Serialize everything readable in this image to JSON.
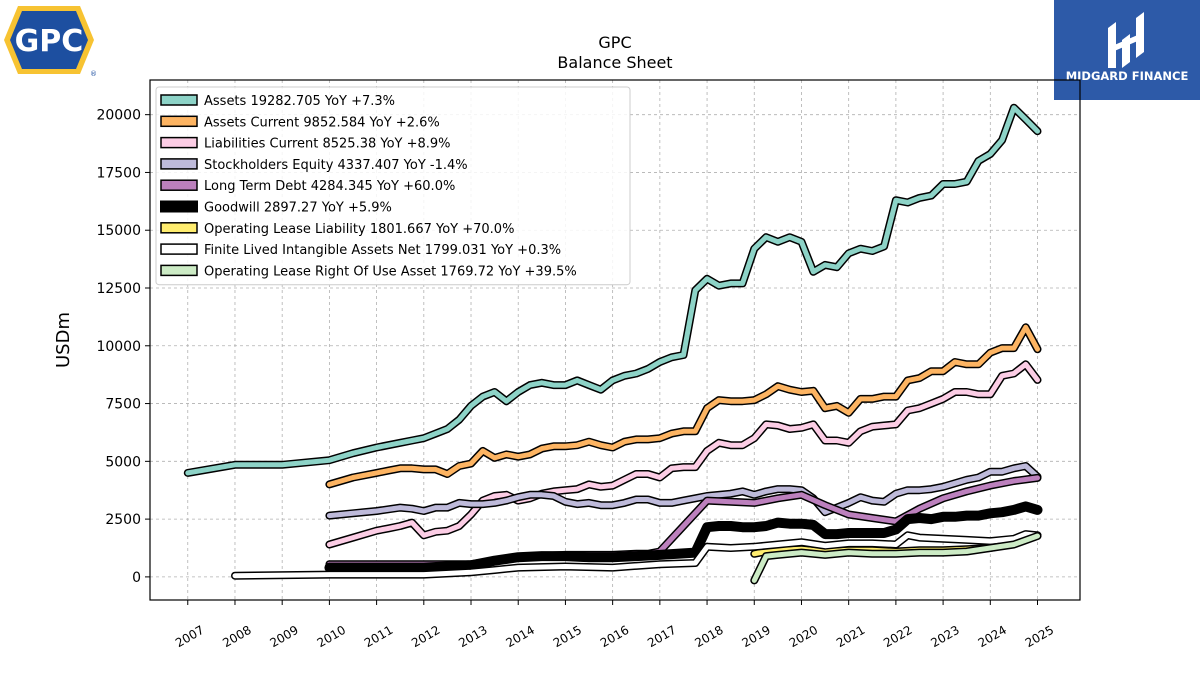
{
  "chart_data": {
    "type": "line",
    "title": "GPC",
    "subtitle": "Balance  Sheet",
    "ylabel": "USDm",
    "xlabel": "",
    "xlim": [
      2006.2,
      2025.9
    ],
    "ylim": [
      -1000,
      21500
    ],
    "yticks": [
      0,
      2500,
      5000,
      7500,
      10000,
      12500,
      15000,
      17500,
      20000
    ],
    "ytick_labels": [
      "0",
      "2500",
      "5000",
      "7500",
      "10000",
      "12500",
      "15000",
      "17500",
      "20000"
    ],
    "xticks": [
      2007,
      2008,
      2009,
      2010,
      2011,
      2012,
      2013,
      2014,
      2015,
      2016,
      2017,
      2018,
      2019,
      2020,
      2021,
      2022,
      2023,
      2024,
      2025
    ],
    "xtick_labels": [
      "2007",
      "2008",
      "2009",
      "2010",
      "2011",
      "2012",
      "2013",
      "2014",
      "2015",
      "2016",
      "2017",
      "2018",
      "2019",
      "2020",
      "2021",
      "2022",
      "2023",
      "2024",
      "2025"
    ],
    "grid": true,
    "legend_position": "top-left",
    "series": [
      {
        "name": "Assets",
        "legend": "Assets  19282.705 YoY +7.3%",
        "color": "#8dd3c7",
        "width": 5,
        "x": [
          2007,
          2008,
          2009,
          2010,
          2010.5,
          2011,
          2011.5,
          2011.75,
          2012,
          2012.25,
          2012.5,
          2012.75,
          2013,
          2013.25,
          2013.5,
          2013.75,
          2014,
          2014.25,
          2014.5,
          2014.75,
          2015,
          2015.25,
          2015.5,
          2015.75,
          2016,
          2016.25,
          2016.5,
          2016.75,
          2017,
          2017.25,
          2017.5,
          2017.75,
          2018,
          2018.25,
          2018.5,
          2018.75,
          2019,
          2019.25,
          2019.5,
          2019.75,
          2020,
          2020.25,
          2020.5,
          2020.75,
          2021,
          2021.25,
          2021.5,
          2021.75,
          2022,
          2022.25,
          2022.5,
          2022.75,
          2023,
          2023.25,
          2023.5,
          2023.75,
          2024,
          2024.25,
          2024.5,
          2024.75,
          2025
        ],
        "y": [
          4500,
          4850,
          4850,
          5050,
          5350,
          5600,
          5800,
          5900,
          6000,
          6200,
          6400,
          6800,
          7400,
          7800,
          8000,
          7600,
          8000,
          8300,
          8400,
          8300,
          8300,
          8500,
          8300,
          8100,
          8500,
          8700,
          8800,
          9000,
          9300,
          9500,
          9600,
          12400,
          12900,
          12600,
          12700,
          12700,
          14200,
          14700,
          14500,
          14700,
          14500,
          13200,
          13500,
          13400,
          14000,
          14200,
          14100,
          14300,
          16300,
          16200,
          16400,
          16500,
          17000,
          17000,
          17100,
          18000,
          18300,
          18900,
          20300,
          19800,
          19283
        ]
      },
      {
        "name": "Assets Current",
        "legend": "Assets Current  9852.584 YoY +2.6%",
        "color": "#fdb462",
        "width": 5,
        "x": [
          2010,
          2010.5,
          2011,
          2011.25,
          2011.5,
          2011.75,
          2012,
          2012.25,
          2012.5,
          2012.75,
          2013,
          2013.25,
          2013.5,
          2013.75,
          2014,
          2014.25,
          2014.5,
          2014.75,
          2015,
          2015.25,
          2015.5,
          2015.75,
          2016,
          2016.25,
          2016.5,
          2016.75,
          2017,
          2017.25,
          2017.5,
          2017.75,
          2018,
          2018.25,
          2018.5,
          2018.75,
          2019,
          2019.25,
          2019.5,
          2019.75,
          2020,
          2020.25,
          2020.5,
          2020.75,
          2021,
          2021.25,
          2021.5,
          2021.75,
          2022,
          2022.25,
          2022.5,
          2022.75,
          2023,
          2023.25,
          2023.5,
          2023.75,
          2024,
          2024.25,
          2024.5,
          2024.75,
          2025
        ],
        "y": [
          4000,
          4300,
          4500,
          4600,
          4700,
          4700,
          4650,
          4650,
          4450,
          4800,
          4900,
          5450,
          5150,
          5300,
          5200,
          5300,
          5550,
          5650,
          5650,
          5700,
          5850,
          5700,
          5600,
          5850,
          5950,
          5950,
          6000,
          6200,
          6300,
          6300,
          7300,
          7650,
          7600,
          7600,
          7650,
          7900,
          8250,
          8100,
          8000,
          8050,
          7300,
          7400,
          7100,
          7700,
          7700,
          7800,
          7800,
          8500,
          8600,
          8900,
          8900,
          9300,
          9200,
          9200,
          9700,
          9900,
          9900,
          10800,
          9853
        ]
      },
      {
        "name": "Liabilities Current",
        "legend": "Liabilities Current  8525.38 YoY +8.9%",
        "color": "#fccde5",
        "width": 5,
        "x": [
          2010,
          2010.5,
          2011,
          2011.25,
          2011.5,
          2011.75,
          2012,
          2012.25,
          2012.5,
          2012.75,
          2013,
          2013.25,
          2013.5,
          2013.75,
          2014,
          2014.25,
          2014.5,
          2014.75,
          2015,
          2015.25,
          2015.5,
          2015.75,
          2016,
          2016.25,
          2016.5,
          2016.75,
          2017,
          2017.25,
          2017.5,
          2017.75,
          2018,
          2018.25,
          2018.5,
          2018.75,
          2019,
          2019.25,
          2019.5,
          2019.75,
          2020,
          2020.25,
          2020.5,
          2020.75,
          2021,
          2021.25,
          2021.5,
          2021.75,
          2022,
          2022.25,
          2022.5,
          2022.75,
          2023,
          2023.25,
          2023.5,
          2023.75,
          2024,
          2024.25,
          2024.5,
          2024.75,
          2025
        ],
        "y": [
          1400,
          1700,
          2000,
          2100,
          2200,
          2350,
          1800,
          1950,
          2000,
          2200,
          2700,
          3300,
          3500,
          3550,
          3300,
          3400,
          3600,
          3700,
          3750,
          3800,
          4000,
          3900,
          3950,
          4200,
          4450,
          4450,
          4300,
          4700,
          4750,
          4750,
          5450,
          5800,
          5700,
          5700,
          6000,
          6600,
          6550,
          6400,
          6450,
          6600,
          5900,
          5900,
          5800,
          6300,
          6500,
          6550,
          6600,
          7200,
          7300,
          7500,
          7700,
          8000,
          8000,
          7900,
          7900,
          8700,
          8800,
          9200,
          8525
        ]
      },
      {
        "name": "Stockholders Equity",
        "legend": "Stockholders Equity  4337.407 YoY -1.4%",
        "color": "#bebada",
        "width": 5,
        "x": [
          2010,
          2010.5,
          2011,
          2011.5,
          2011.75,
          2012,
          2012.25,
          2012.5,
          2012.75,
          2013,
          2013.25,
          2013.5,
          2013.75,
          2014,
          2014.25,
          2014.5,
          2014.75,
          2015,
          2015.25,
          2015.5,
          2015.75,
          2016,
          2016.25,
          2016.5,
          2016.75,
          2017,
          2017.25,
          2017.5,
          2017.75,
          2018,
          2018.25,
          2018.5,
          2018.75,
          2019,
          2019.25,
          2019.5,
          2019.75,
          2020,
          2020.25,
          2020.5,
          2020.75,
          2021,
          2021.25,
          2021.5,
          2021.75,
          2022,
          2022.25,
          2022.5,
          2022.75,
          2023,
          2023.25,
          2023.5,
          2023.75,
          2024,
          2024.25,
          2024.5,
          2024.75,
          2025
        ],
        "y": [
          2650,
          2750,
          2850,
          3000,
          2950,
          2850,
          3000,
          3000,
          3200,
          3150,
          3150,
          3200,
          3300,
          3450,
          3550,
          3550,
          3500,
          3250,
          3150,
          3200,
          3100,
          3100,
          3200,
          3350,
          3350,
          3200,
          3200,
          3300,
          3400,
          3500,
          3550,
          3600,
          3700,
          3550,
          3700,
          3800,
          3800,
          3750,
          3400,
          2800,
          3000,
          3200,
          3450,
          3300,
          3250,
          3600,
          3750,
          3750,
          3800,
          3900,
          4050,
          4200,
          4300,
          4550,
          4550,
          4700,
          4800,
          4337
        ]
      },
      {
        "name": "Long Term Debt",
        "legend": "Long Term Debt  4284.345 YoY +60.0%",
        "color": "#bc80bd",
        "width": 5,
        "x": [
          2010,
          2012.5,
          2013,
          2014,
          2015,
          2016,
          2016.5,
          2016.75,
          2017,
          2017.5,
          2018,
          2018.5,
          2019,
          2019.5,
          2020,
          2020.5,
          2021,
          2021.5,
          2022,
          2022.5,
          2023,
          2023.5,
          2024,
          2024.5,
          2025
        ],
        "y": [
          550,
          550,
          550,
          850,
          950,
          950,
          1000,
          1000,
          1100,
          2200,
          3300,
          3250,
          3200,
          3400,
          3550,
          3100,
          2700,
          2550,
          2400,
          2950,
          3400,
          3700,
          3950,
          4150,
          4284
        ]
      },
      {
        "name": "Goodwill",
        "legend": "Goodwill  2897.27 YoY +5.9%",
        "color": "#000000",
        "width": 7,
        "x": [
          2010,
          2011,
          2012,
          2013,
          2013.5,
          2014,
          2014.5,
          2015,
          2015.5,
          2016,
          2016.5,
          2017,
          2017.75,
          2018,
          2018.25,
          2018.5,
          2018.75,
          2019,
          2019.25,
          2019.5,
          2019.75,
          2020,
          2020.25,
          2020.5,
          2020.75,
          2021,
          2021.25,
          2021.5,
          2021.75,
          2022,
          2022.25,
          2022.5,
          2022.75,
          2023,
          2023.25,
          2023.5,
          2023.75,
          2024,
          2024.25,
          2024.5,
          2024.75,
          2025
        ],
        "y": [
          400,
          400,
          400,
          500,
          700,
          850,
          900,
          900,
          850,
          850,
          900,
          950,
          1050,
          2150,
          2200,
          2200,
          2150,
          2150,
          2200,
          2350,
          2300,
          2300,
          2250,
          1850,
          1850,
          1900,
          1900,
          1900,
          1900,
          2050,
          2500,
          2550,
          2500,
          2600,
          2600,
          2650,
          2650,
          2750,
          2800,
          2900,
          3050,
          2897
        ]
      },
      {
        "name": "Operating Lease Liability",
        "legend": "Operating Lease Liability  1801.667 YoY +70.0%",
        "color": "#ffed6f",
        "width": 5,
        "x": [
          2019,
          2019.25,
          2019.5,
          2020,
          2020.5,
          2021,
          2021.5,
          2022,
          2022.5,
          2023,
          2023.5,
          2024,
          2024.5,
          2025
        ],
        "y": [
          1000,
          1100,
          1150,
          1200,
          1100,
          1150,
          1150,
          1100,
          1150,
          1150,
          1200,
          1250,
          1450,
          1800
        ]
      },
      {
        "name": "Finite Lived Intangible Assets Net",
        "legend": "Finite Lived Intangible Assets Net  1799.031 YoY +0.3%",
        "color": "#ffffff",
        "width": 5,
        "x": [
          2008,
          2010,
          2012,
          2013,
          2013.5,
          2014,
          2015,
          2016,
          2017,
          2017.75,
          2018,
          2018.5,
          2019,
          2019.5,
          2020,
          2020.5,
          2021,
          2021.5,
          2022,
          2022.25,
          2022.5,
          2023,
          2023.5,
          2024,
          2024.5,
          2024.75,
          2025
        ],
        "y": [
          50,
          100,
          100,
          200,
          300,
          400,
          450,
          400,
          550,
          600,
          1300,
          1250,
          1300,
          1400,
          1500,
          1350,
          1450,
          1450,
          1400,
          1800,
          1700,
          1650,
          1600,
          1550,
          1650,
          1850,
          1799
        ]
      },
      {
        "name": "Operating Lease Right Of Use Asset",
        "legend": "Operating Lease Right Of Use Asset  1769.72 YoY +39.5%",
        "color": "#ccebc5",
        "width": 5,
        "x": [
          2019,
          2019.25,
          2019.5,
          2020,
          2020.5,
          2021,
          2021.5,
          2022,
          2022.5,
          2023,
          2023.5,
          2024,
          2024.5,
          2025
        ],
        "y": [
          -150,
          900,
          950,
          1050,
          950,
          1050,
          1000,
          1000,
          1050,
          1050,
          1100,
          1250,
          1400,
          1770
        ]
      }
    ]
  },
  "logos": {
    "left_logo_text": "GPC",
    "right_logo_text": "MIDGARD FINANCE",
    "left_logo_color": "#1d4fa0",
    "left_logo_fill": "#f7c332",
    "right_logo_color": "#2d5aa8"
  }
}
